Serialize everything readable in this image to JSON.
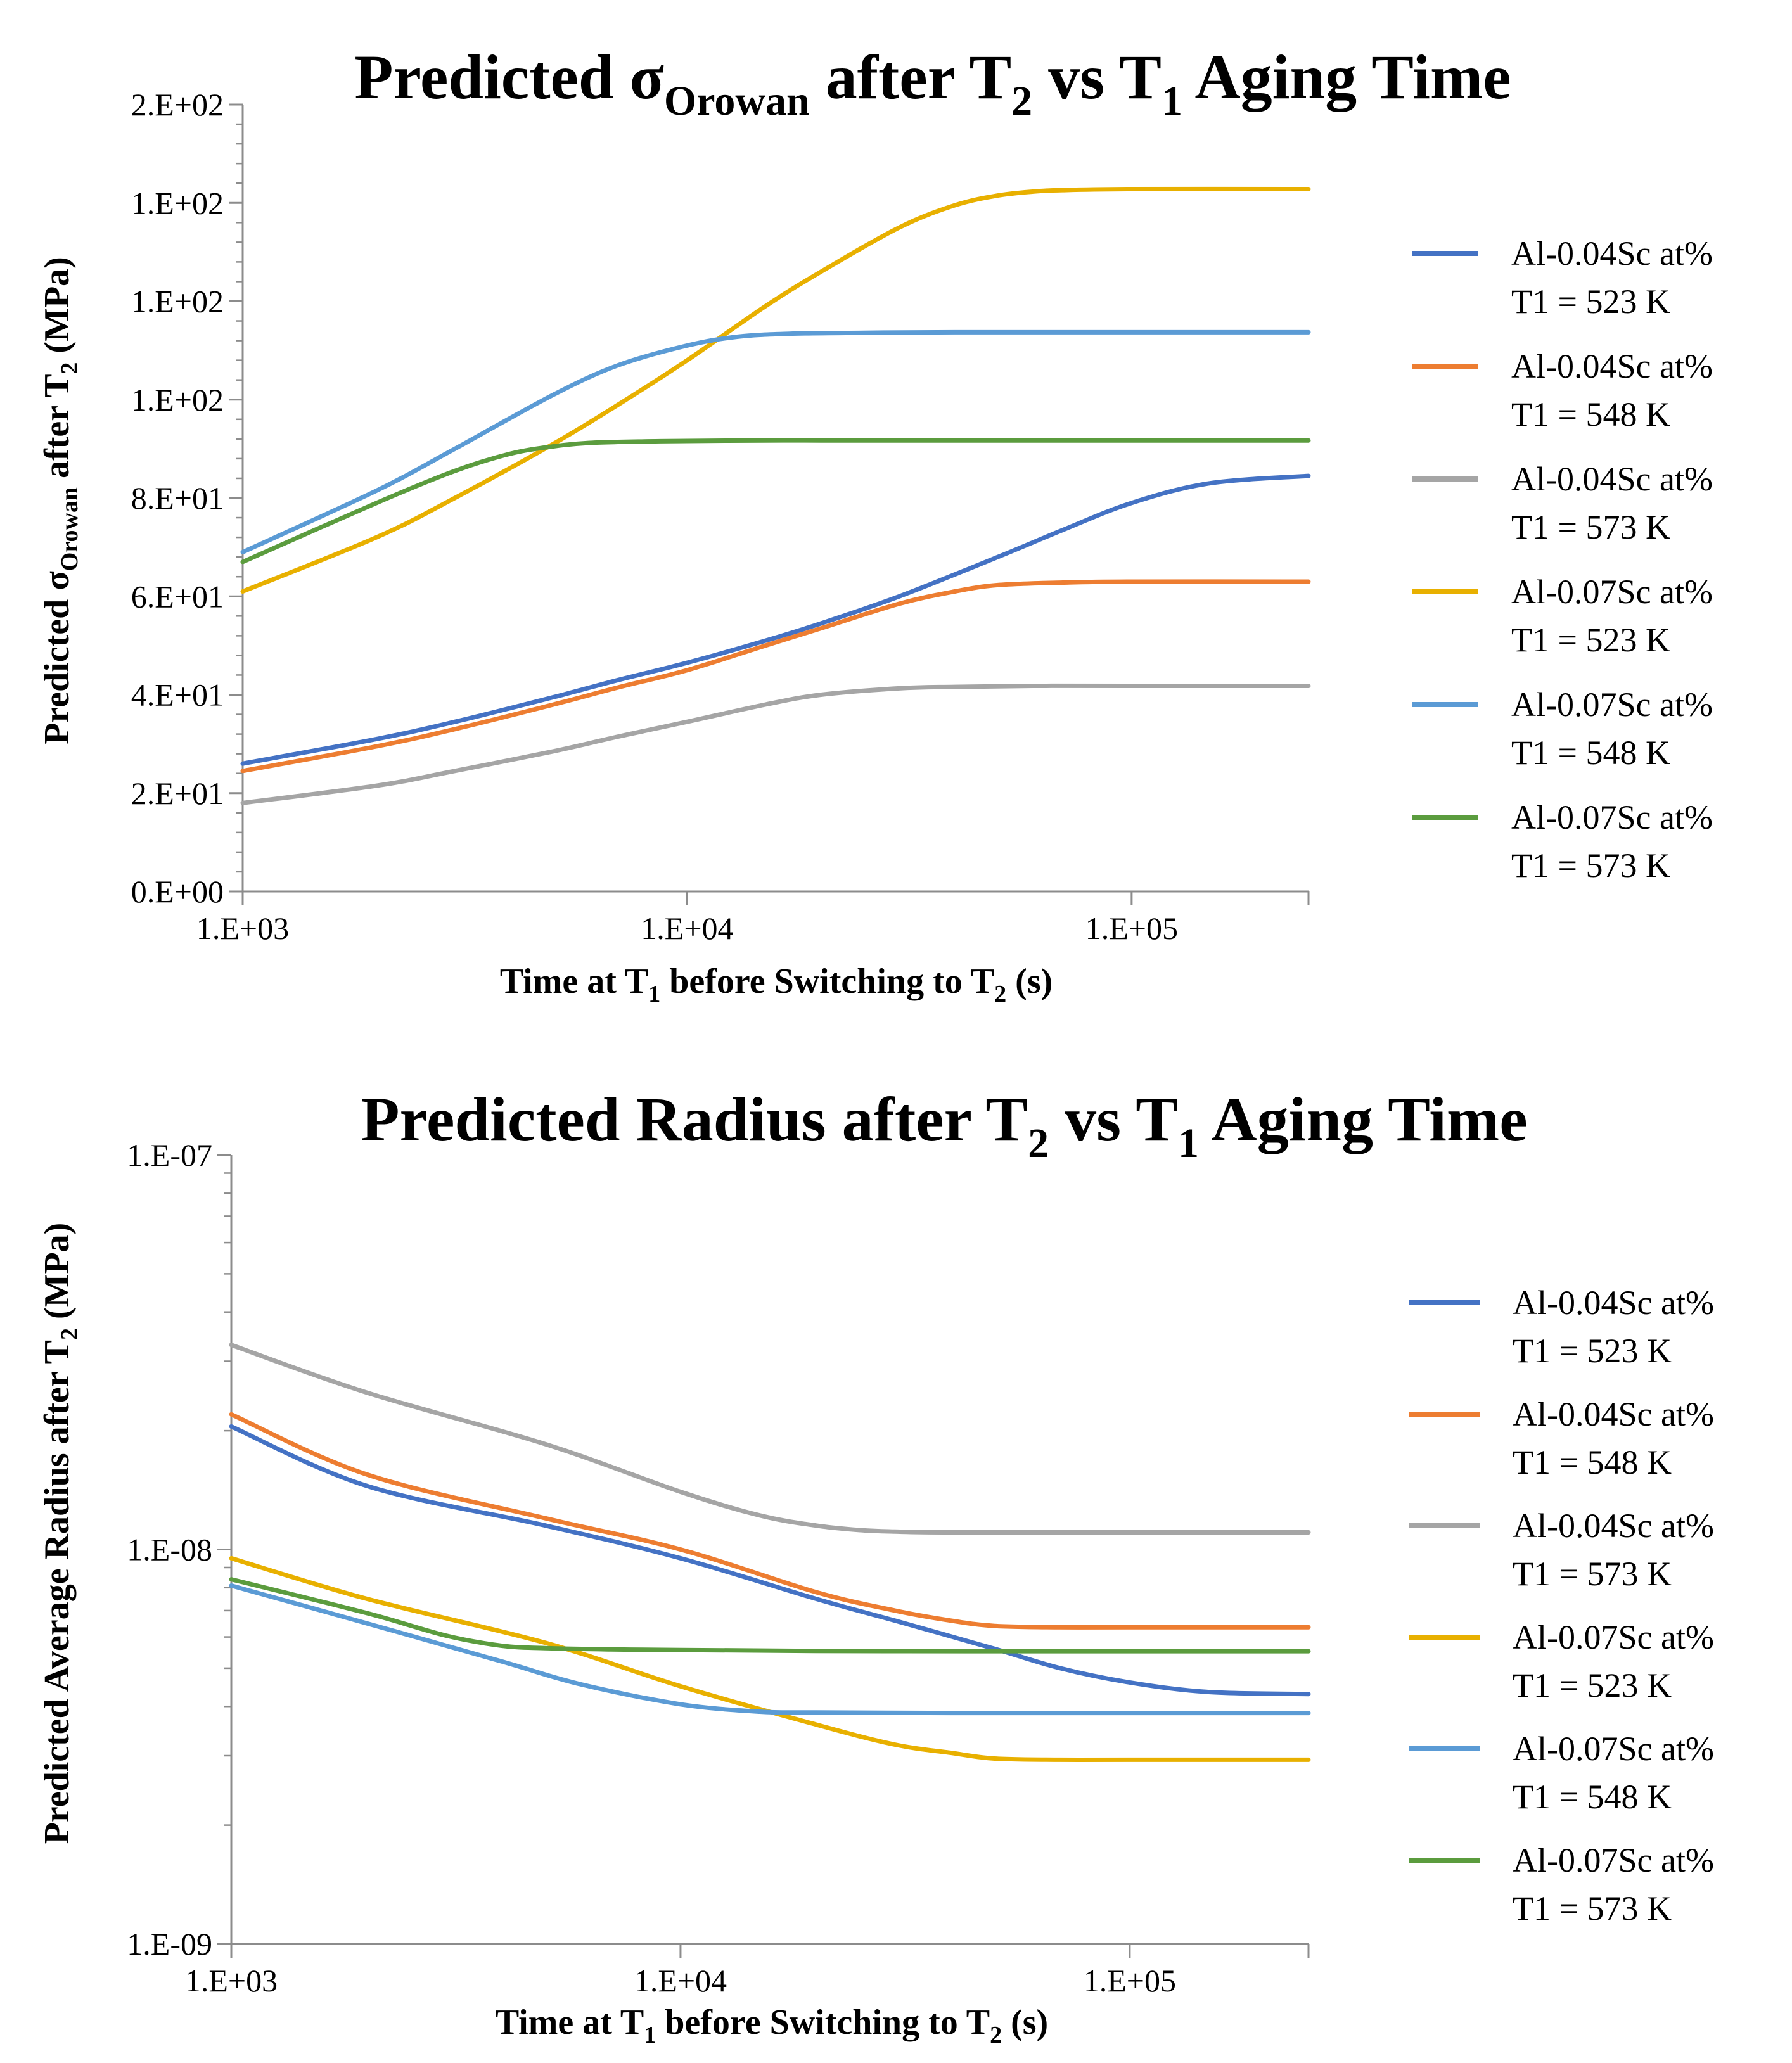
{
  "chart_data": [
    {
      "type": "line",
      "id": "orowan",
      "title": {
        "main": "Predicted σ",
        "sub": "Orowan",
        "rest": " after T",
        "sub2": "2",
        "rest2": " vs T",
        "sub3": "1",
        "rest3": " Aging Time"
      },
      "xlabel": {
        "a": "Time at T",
        "s1": "1",
        "b": " before Switching to T",
        "s2": "2",
        "c": " (s)"
      },
      "ylabel": {
        "a": "Predicted σ",
        "s1": "Orowan",
        "b": " after T",
        "s2": "2",
        "c": " (MPa)"
      },
      "xscale": "log",
      "xlim": [
        1000,
        250000
      ],
      "ylim": [
        0,
        160
      ],
      "x_ticks": [
        1000,
        10000,
        100000
      ],
      "x_tick_labels": [
        "1.E+03",
        "1.E+04",
        "1.E+05"
      ],
      "y_ticks": [
        0,
        20,
        40,
        60,
        80,
        100,
        120,
        140,
        160
      ],
      "y_tick_labels": [
        "0.E+00",
        "2.E+01",
        "4.E+01",
        "6.E+01",
        "8.E+01",
        "1.E+02",
        "1.E+02",
        "1.E+02",
        "2.E+02"
      ],
      "legend_position": "right",
      "series": [
        {
          "name": "Al-0.04Sc at%",
          "name2": "T1 = 523 K",
          "color": "#4472C4",
          "x": [
            1000,
            2000,
            3000,
            5000,
            7000,
            10000,
            15000,
            20000,
            30000,
            50000,
            70000,
            100000,
            150000,
            250000
          ],
          "y": [
            26,
            31,
            34.5,
            39.5,
            43,
            46.5,
            51,
            54.5,
            60,
            68,
            73.5,
            79,
            83,
            84.5
          ]
        },
        {
          "name": "Al-0.04Sc at%",
          "name2": "T1 = 548 K",
          "color": "#ED7D31",
          "x": [
            1000,
            2000,
            3000,
            5000,
            7000,
            10000,
            15000,
            20000,
            30000,
            40000,
            50000,
            70000,
            100000,
            250000
          ],
          "y": [
            24.5,
            29.5,
            33,
            38,
            41.5,
            45,
            50,
            53.5,
            58.5,
            61,
            62.3,
            62.8,
            63,
            63
          ]
        },
        {
          "name": "Al-0.04Sc at%",
          "name2": "T1 = 573 K",
          "color": "#A5A5A5",
          "x": [
            1000,
            2000,
            3000,
            5000,
            7000,
            10000,
            15000,
            20000,
            30000,
            40000,
            60000,
            100000,
            250000
          ],
          "y": [
            18,
            21.5,
            24.5,
            28.5,
            31.5,
            34.5,
            38,
            40,
            41.3,
            41.6,
            41.8,
            41.8,
            41.8
          ]
        },
        {
          "name": "Al-0.07Sc at%",
          "name2": "T1 = 523 K",
          "color": "#E8B000",
          "x": [
            1000,
            2000,
            3000,
            5000,
            7000,
            10000,
            15000,
            20000,
            30000,
            40000,
            50000,
            60000,
            70000,
            100000,
            250000
          ],
          "y": [
            61,
            72,
            80,
            91,
            99,
            108,
            119,
            126,
            135,
            139.5,
            141.5,
            142.3,
            142.6,
            142.8,
            142.8
          ]
        },
        {
          "name": "Al-0.07Sc at%",
          "name2": "T1 = 548 K",
          "color": "#5B9BD5",
          "x": [
            1000,
            2000,
            3000,
            5000,
            7000,
            10000,
            13000,
            17000,
            25000,
            40000,
            100000,
            250000
          ],
          "y": [
            69,
            81.5,
            90,
            101,
            107,
            111,
            112.8,
            113.4,
            113.6,
            113.7,
            113.7,
            113.7
          ]
        },
        {
          "name": "Al-0.07Sc at%",
          "name2": "T1 = 573 K",
          "color": "#5B9C3E",
          "x": [
            1000,
            2000,
            3000,
            4000,
            5000,
            6000,
            8000,
            10000,
            15000,
            20000,
            50000,
            100000,
            250000
          ],
          "y": [
            67,
            79,
            85.5,
            89,
            90.5,
            91.2,
            91.5,
            91.6,
            91.7,
            91.7,
            91.7,
            91.7,
            91.7
          ]
        }
      ]
    },
    {
      "type": "line",
      "id": "radius",
      "title": {
        "main": "Predicted Radius after T",
        "sub": "2",
        "rest": " vs T",
        "sub2": "1",
        "rest2": " Aging Time"
      },
      "xlabel": {
        "a": "Time at T",
        "s1": "1",
        "b": " before Switching to T",
        "s2": "2",
        "c": " (s)"
      },
      "ylabel": {
        "a": "Predicted Average Radius after T",
        "s1": "2",
        "c": " (MPa)"
      },
      "xscale": "log",
      "yscale": "log",
      "xlim": [
        1000,
        250000
      ],
      "ylim": [
        1e-09,
        1e-07
      ],
      "x_ticks": [
        1000,
        10000,
        100000
      ],
      "x_tick_labels": [
        "1.E+03",
        "1.E+04",
        "1.E+05"
      ],
      "y_ticks": [
        1e-09,
        1e-08,
        1e-07
      ],
      "y_tick_labels": [
        "1.E-09",
        "1.E-08",
        "1.E-07"
      ],
      "legend_position": "right",
      "series": [
        {
          "name": "Al-0.04Sc at%",
          "name2": "T1 = 523 K",
          "color": "#4472C4",
          "x": [
            1000,
            2000,
            5000,
            10000,
            20000,
            30000,
            50000,
            70000,
            100000,
            150000,
            250000
          ],
          "y": [
            2.05e-08,
            1.45e-08,
            1.15e-08,
            9.5e-09,
            7.5e-09,
            6.6e-09,
            5.6e-09,
            5e-09,
            4.6e-09,
            4.35e-09,
            4.3e-09
          ]
        },
        {
          "name": "Al-0.04Sc at%",
          "name2": "T1 = 548 K",
          "color": "#ED7D31",
          "x": [
            1000,
            2000,
            5000,
            10000,
            20000,
            30000,
            40000,
            50000,
            70000,
            100000,
            250000
          ],
          "y": [
            2.2e-08,
            1.55e-08,
            1.2e-08,
            1e-08,
            7.8e-09,
            7e-09,
            6.6e-09,
            6.4e-09,
            6.35e-09,
            6.35e-09,
            6.35e-09
          ]
        },
        {
          "name": "Al-0.04Sc at%",
          "name2": "T1 = 573 K",
          "color": "#A5A5A5",
          "x": [
            1000,
            2000,
            5000,
            10000,
            15000,
            20000,
            25000,
            30000,
            40000,
            100000,
            250000
          ],
          "y": [
            3.3e-08,
            2.5e-08,
            1.85e-08,
            1.4e-08,
            1.22e-08,
            1.15e-08,
            1.12e-08,
            1.11e-08,
            1.105e-08,
            1.105e-08,
            1.105e-08
          ]
        },
        {
          "name": "Al-0.07Sc at%",
          "name2": "T1 = 523 K",
          "color": "#E8B000",
          "x": [
            1000,
            2000,
            5000,
            10000,
            20000,
            30000,
            40000,
            50000,
            70000,
            100000,
            250000
          ],
          "y": [
            9.5e-09,
            7.5e-09,
            5.8e-09,
            4.5e-09,
            3.6e-09,
            3.2e-09,
            3.05e-09,
            2.95e-09,
            2.93e-09,
            2.93e-09,
            2.93e-09
          ]
        },
        {
          "name": "Al-0.07Sc at%",
          "name2": "T1 = 548 K",
          "color": "#5B9BD5",
          "x": [
            1000,
            2000,
            4000,
            6000,
            10000,
            15000,
            20000,
            40000,
            100000,
            250000
          ],
          "y": [
            8.1e-09,
            6.5e-09,
            5.2e-09,
            4.55e-09,
            4.05e-09,
            3.88e-09,
            3.86e-09,
            3.85e-09,
            3.85e-09,
            3.85e-09
          ]
        },
        {
          "name": "Al-0.07Sc at%",
          "name2": "T1 = 573 K",
          "color": "#5B9C3E",
          "x": [
            1000,
            2000,
            3000,
            4000,
            5000,
            7000,
            10000,
            20000,
            50000,
            100000,
            250000
          ],
          "y": [
            8.4e-09,
            6.9e-09,
            6.05e-09,
            5.7e-09,
            5.62e-09,
            5.58e-09,
            5.56e-09,
            5.53e-09,
            5.52e-09,
            5.52e-09,
            5.52e-09
          ]
        }
      ]
    }
  ]
}
